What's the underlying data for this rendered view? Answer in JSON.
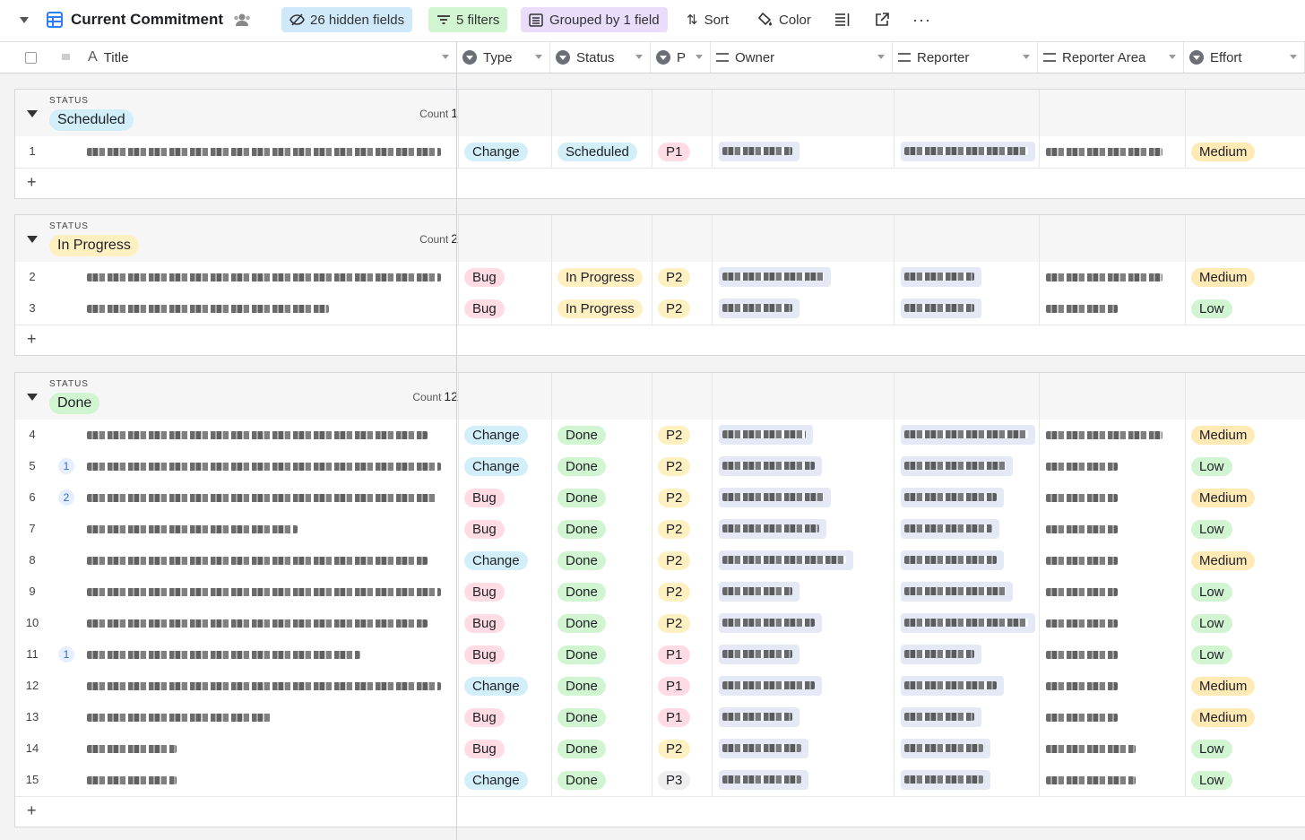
{
  "toolbar": {
    "view_title": "Current Commitment",
    "hidden_fields": "26 hidden fields",
    "filters": "5 filters",
    "grouped": "Grouped by 1 field",
    "sort": "Sort",
    "color": "Color"
  },
  "columns": [
    "Title",
    "Type",
    "Status",
    "P",
    "Owner",
    "Reporter",
    "Reporter Area",
    "Effort"
  ],
  "colors": {
    "bug": "#ffdce3",
    "change": "#d2eef9",
    "done_status": "#d1f5d0",
    "inprogress": "#fff0c2",
    "scheduled": "#d2eef9",
    "p1": "#ffdce3",
    "p2": "#fff0c2",
    "p3": "#eeeeee",
    "medium": "#ffeab6",
    "low": "#d1f5d0"
  },
  "groups": [
    {
      "status_label": "STATUS",
      "name": "Scheduled",
      "count_label": "Count",
      "count": "1",
      "rows": [
        {
          "num": "1",
          "comments": "",
          "type": "Change",
          "status": "Scheduled",
          "p": "P1",
          "effort": "Medium"
        }
      ]
    },
    {
      "status_label": "STATUS",
      "name": "In Progress",
      "count_label": "Count",
      "count": "2",
      "rows": [
        {
          "num": "2",
          "comments": "",
          "type": "Bug",
          "status": "In Progress",
          "p": "P2",
          "effort": "Medium"
        },
        {
          "num": "3",
          "comments": "",
          "type": "Bug",
          "status": "In Progress",
          "p": "P2",
          "effort": "Low"
        }
      ]
    },
    {
      "status_label": "STATUS",
      "name": "Done",
      "count_label": "Count",
      "count": "12",
      "rows": [
        {
          "num": "4",
          "comments": "",
          "type": "Change",
          "status": "Done",
          "p": "P2",
          "effort": "Medium"
        },
        {
          "num": "5",
          "comments": "1",
          "type": "Change",
          "status": "Done",
          "p": "P2",
          "effort": "Low"
        },
        {
          "num": "6",
          "comments": "2",
          "type": "Bug",
          "status": "Done",
          "p": "P2",
          "effort": "Medium"
        },
        {
          "num": "7",
          "comments": "",
          "type": "Bug",
          "status": "Done",
          "p": "P2",
          "effort": "Low"
        },
        {
          "num": "8",
          "comments": "",
          "type": "Change",
          "status": "Done",
          "p": "P2",
          "effort": "Medium"
        },
        {
          "num": "9",
          "comments": "",
          "type": "Bug",
          "status": "Done",
          "p": "P2",
          "effort": "Low"
        },
        {
          "num": "10",
          "comments": "",
          "type": "Bug",
          "status": "Done",
          "p": "P2",
          "effort": "Low"
        },
        {
          "num": "11",
          "comments": "1",
          "type": "Bug",
          "status": "Done",
          "p": "P1",
          "effort": "Low"
        },
        {
          "num": "12",
          "comments": "",
          "type": "Change",
          "status": "Done",
          "p": "P1",
          "effort": "Medium"
        },
        {
          "num": "13",
          "comments": "",
          "type": "Bug",
          "status": "Done",
          "p": "P1",
          "effort": "Medium"
        },
        {
          "num": "14",
          "comments": "",
          "type": "Bug",
          "status": "Done",
          "p": "P2",
          "effort": "Low"
        },
        {
          "num": "15",
          "comments": "",
          "type": "Change",
          "status": "Done",
          "p": "P3",
          "effort": "Low"
        }
      ]
    }
  ],
  "add_row": "+"
}
